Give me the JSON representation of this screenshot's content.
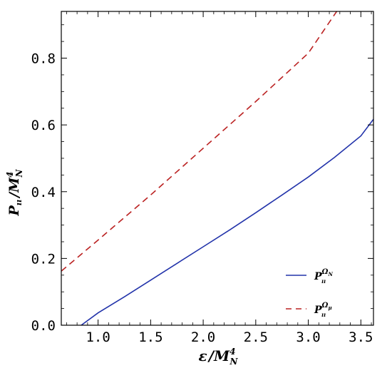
{
  "chart_data": {
    "type": "line",
    "xlabel": {
      "main": "ε",
      "slash": "/",
      "base": "M",
      "sub": "N",
      "sup": "4"
    },
    "ylabel": {
      "main": "P",
      "sub": "ıı",
      "slash": "/",
      "base": "M",
      "sub2": "N",
      "sup": "4"
    },
    "xlim": [
      0.65,
      3.62
    ],
    "ylim": [
      0.0,
      0.94
    ],
    "xticks": [
      1.0,
      1.5,
      2.0,
      2.5,
      3.0,
      3.5
    ],
    "xtick_labels": [
      "1.0",
      "1.5",
      "2.0",
      "2.5",
      "3.0",
      "3.5"
    ],
    "yticks": [
      0.0,
      0.2,
      0.4,
      0.6,
      0.8
    ],
    "ytick_labels": [
      "0.0",
      "0.2",
      "0.4",
      "0.6",
      "0.8"
    ],
    "legend_position": "bottom-right",
    "grid": false,
    "series": [
      {
        "legend": {
          "main": "P",
          "sub": "ıı",
          "sup": "Ω",
          "supsub": "N"
        },
        "color": "#2233aa",
        "dash": "solid",
        "x": [
          0.84,
          1.0,
          1.25,
          1.5,
          1.75,
          2.0,
          2.25,
          2.5,
          2.75,
          3.0,
          3.25,
          3.5,
          3.62
        ],
        "y": [
          0.0,
          0.037,
          0.085,
          0.135,
          0.185,
          0.235,
          0.285,
          0.337,
          0.39,
          0.444,
          0.503,
          0.567,
          0.617
        ]
      },
      {
        "legend": {
          "main": "P",
          "sub": "ıı",
          "sup": "Ω",
          "supsub": "μ"
        },
        "color": "#bb2222",
        "dash": "dashed",
        "x": [
          0.65,
          1.0,
          1.5,
          2.0,
          2.5,
          3.0,
          3.27
        ],
        "y": [
          0.162,
          0.255,
          0.39,
          0.53,
          0.67,
          0.815,
          0.94
        ]
      }
    ]
  }
}
